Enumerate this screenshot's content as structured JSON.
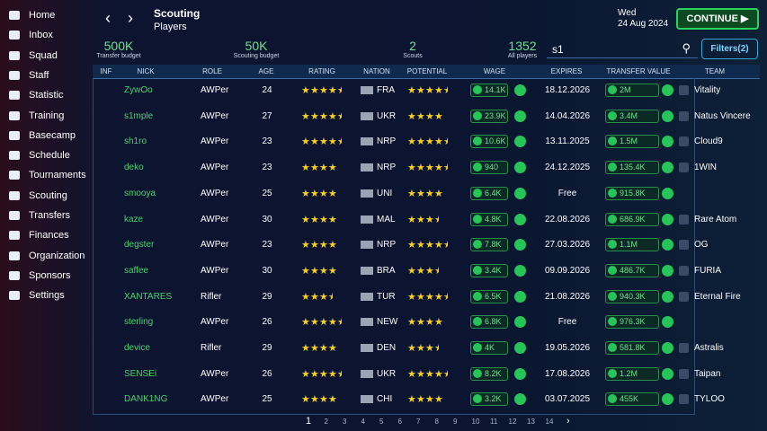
{
  "sidebar": {
    "items": [
      "Home",
      "Inbox",
      "Squad",
      "Staff",
      "Statistic",
      "Training",
      "Basecamp",
      "Schedule",
      "Tournaments",
      "Scouting",
      "Transfers",
      "Finances",
      "Organization",
      "Sponsors",
      "Settings"
    ]
  },
  "header": {
    "title": "Scouting",
    "subtitle": "Players",
    "weekday": "Wed",
    "date": "24 Aug 2024",
    "continue": "CONTINUE"
  },
  "stats": [
    {
      "value": "500K",
      "label": "Transfer budget"
    },
    {
      "value": "50K",
      "label": "Scouting budget"
    },
    {
      "value": "2",
      "label": "Scouts"
    },
    {
      "value": "1352",
      "label": "All players"
    }
  ],
  "search": {
    "query": "s1",
    "filters": "Filters(2)"
  },
  "table": {
    "columns": [
      "INF",
      "NICK",
      "ROLE",
      "AGE",
      "RATING",
      "NATION",
      "POTENTIAL",
      "WAGE",
      "EXPIRES",
      "TRANSFER VALUE",
      "TEAM"
    ],
    "rows": [
      {
        "nick": "ZywOo",
        "role": "AWPer",
        "age": 24,
        "rating": 4.5,
        "nation": "FRA",
        "potential": 4.5,
        "wage": "14.1K",
        "expires": "18.12.2026",
        "value": "2M",
        "team": "Vitality"
      },
      {
        "nick": "s1mple",
        "role": "AWPer",
        "age": 27,
        "rating": 4.5,
        "nation": "UKR",
        "potential": 4,
        "wage": "23.9K",
        "expires": "14.04.2026",
        "value": "3.4M",
        "team": "Natus Vincere"
      },
      {
        "nick": "sh1ro",
        "role": "AWPer",
        "age": 23,
        "rating": 4.5,
        "nation": "NRP",
        "potential": 4.5,
        "wage": "10.6K",
        "expires": "13.11.2025",
        "value": "1.5M",
        "team": "Cloud9"
      },
      {
        "nick": "deko",
        "role": "AWPer",
        "age": 23,
        "rating": 4,
        "nation": "NRP",
        "potential": 4.5,
        "wage": "940",
        "expires": "24.12.2025",
        "value": "135.4K",
        "team": "1WIN"
      },
      {
        "nick": "smooya",
        "role": "AWPer",
        "age": 25,
        "rating": 4,
        "nation": "UNI",
        "potential": 4,
        "wage": "6.4K",
        "expires": "Free",
        "value": "915.8K",
        "team": null
      },
      {
        "nick": "kaze",
        "role": "AWPer",
        "age": 30,
        "rating": 4,
        "nation": "MAL",
        "potential": 3.5,
        "wage": "4.8K",
        "expires": "22.08.2026",
        "value": "686.9K",
        "team": "Rare Atom"
      },
      {
        "nick": "degster",
        "role": "AWPer",
        "age": 23,
        "rating": 4,
        "nation": "NRP",
        "potential": 4.5,
        "wage": "7.8K",
        "expires": "27.03.2026",
        "value": "1.1M",
        "team": "OG"
      },
      {
        "nick": "saffee",
        "role": "AWPer",
        "age": 30,
        "rating": 4,
        "nation": "BRA",
        "potential": 3.5,
        "wage": "3.4K",
        "expires": "09.09.2026",
        "value": "486.7K",
        "team": "FURIA"
      },
      {
        "nick": "XANTARES",
        "role": "Rifler",
        "age": 29,
        "rating": 3.5,
        "nation": "TUR",
        "potential": 4.5,
        "wage": "6.5K",
        "expires": "21.08.2026",
        "value": "940.3K",
        "team": "Eternal Fire"
      },
      {
        "nick": "sterling",
        "role": "AWPer",
        "age": 26,
        "rating": 4.5,
        "nation": "NEW",
        "potential": 4,
        "wage": "6.8K",
        "expires": "Free",
        "value": "976.3K",
        "team": null
      },
      {
        "nick": "device",
        "role": "Rifler",
        "age": 29,
        "rating": 4,
        "nation": "DEN",
        "potential": 3.5,
        "wage": "4K",
        "expires": "19.05.2026",
        "value": "581.8K",
        "team": "Astralis"
      },
      {
        "nick": "SENSEi",
        "role": "AWPer",
        "age": 26,
        "rating": 4.5,
        "nation": "UKR",
        "potential": 4.5,
        "wage": "8.2K",
        "expires": "17.08.2026",
        "value": "1.2M",
        "team": "Taipan"
      },
      {
        "nick": "DANK1NG",
        "role": "AWPer",
        "age": 25,
        "rating": 4,
        "nation": "CHI",
        "potential": 4,
        "wage": "3.2K",
        "expires": "03.07.2025",
        "value": "455K",
        "team": "TYLOO"
      }
    ]
  },
  "pagination": {
    "pages": [
      1,
      2,
      3,
      4,
      5,
      6,
      7,
      8,
      9,
      10,
      11,
      12,
      13,
      14
    ]
  }
}
